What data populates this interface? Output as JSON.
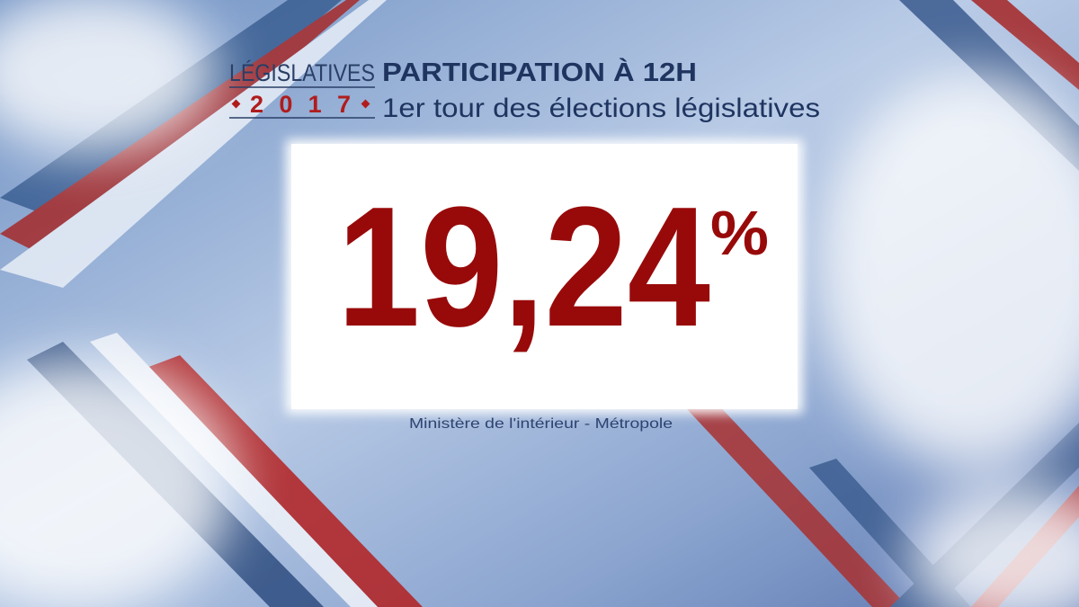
{
  "header": {
    "brand": "LÉGISLATIVES",
    "year": "2017",
    "title": "PARTICIPATION À 12H",
    "subtitle": "1er tour des élections législatives"
  },
  "figure": {
    "value": "19,24",
    "unit": "%"
  },
  "source": "Ministère de l'intérieur - Métropole"
}
